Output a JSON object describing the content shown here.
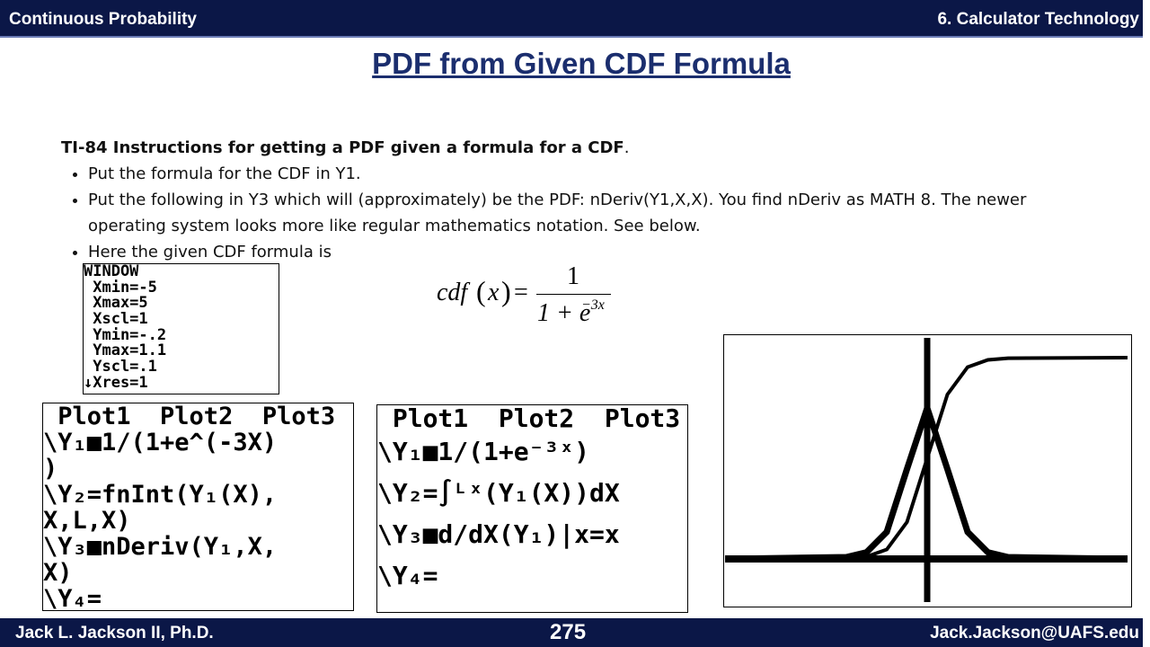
{
  "header": {
    "left": "Continuous Probability",
    "right": "6.  Calculator Technology"
  },
  "title": "PDF from Given CDF Formula",
  "instructions": {
    "heading": "TI-84 Instructions for getting a PDF given a formula for a CDF",
    "heading_end": ".",
    "bullets": [
      "Put the formula for the CDF in Y1.",
      "Put the following in Y3 which will (approximately) be the PDF:  nDeriv(Y1,X,X).  You find nDeriv as MATH 8.  The newer operating system looks more like regular mathematics notation.  See below.",
      "Here the given CDF formula is"
    ]
  },
  "formula": {
    "lhs": "cdf",
    "open": "(",
    "var": "x",
    "close": ")",
    "eq": "=",
    "numerator": "1",
    "denominator": "1 + e",
    "exponent": "−3x"
  },
  "window_screen": {
    "lines": [
      "WINDOW",
      " Xmin=-5",
      " Xmax=5",
      " Xscl=1",
      " Ymin=-.2",
      " Ymax=1.1",
      " Yscl=.1",
      "↓Xres=1"
    ]
  },
  "classic_screen": {
    "header": " Plot1  Plot2  Plot3",
    "lines": [
      "\\Y₁■1/(1+e^(-3X)",
      ")",
      "\\Y₂=fnInt(Y₁(X),",
      "X,L,X)",
      "\\Y₃■nDeriv(Y₁,X,",
      "X)",
      "\\Y₄="
    ]
  },
  "mathprint_screen": {
    "header": " Plot1  Plot2  Plot3",
    "lines": [
      "\\Y₁■1/(1+e⁻³ˣ)",
      "\\Y₂=∫ᴸˣ(Y₁(X))dX",
      "\\Y₃■d/dX(Y₁)|x=x",
      "\\Y₄="
    ]
  },
  "footer": {
    "author": "Jack L. Jackson II, Ph.D.",
    "page": "275",
    "email": "Jack.Jackson@UAFS.edu"
  }
}
